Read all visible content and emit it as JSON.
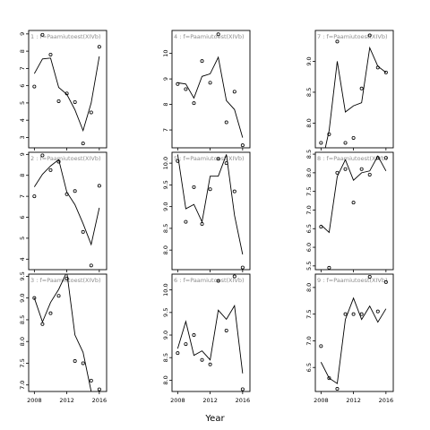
{
  "chart_data": {
    "type": "scatter",
    "xlabel": "Year",
    "x_ticks": [
      2008,
      2012,
      2016
    ],
    "panels": [
      {
        "strip": "1 : f=Paamiutoest(XIVb)",
        "x": [
          2008,
          2009,
          2010,
          2011,
          2012,
          2013,
          2014,
          2015,
          2016
        ],
        "points": [
          5.95,
          8.95,
          7.8,
          5.1,
          5.55,
          5.05,
          2.65,
          4.45,
          8.25
        ],
        "fit": [
          6.7,
          7.55,
          7.6,
          5.9,
          5.5,
          4.6,
          3.4,
          5.0,
          7.7
        ],
        "yticks": [
          3,
          4,
          5,
          6,
          7,
          8,
          9
        ],
        "ylim": [
          2.4,
          9.2
        ]
      },
      {
        "strip": "4 : f=Paamiutoest(XIVb)",
        "x": [
          2008,
          2009,
          2010,
          2011,
          2012,
          2013,
          2014,
          2015,
          2016
        ],
        "points": [
          8.8,
          8.6,
          8.05,
          9.7,
          8.85,
          10.75,
          7.3,
          8.5,
          6.4
        ],
        "fit": [
          8.85,
          8.8,
          8.25,
          9.1,
          9.2,
          9.85,
          8.15,
          7.8,
          6.7
        ],
        "yticks": [
          7,
          8,
          9,
          10
        ],
        "ylim": [
          6.3,
          10.9
        ]
      },
      {
        "strip": "7 : f=Paamiutoest(XIVb)",
        "x": [
          2008,
          2009,
          2010,
          2011,
          2012,
          2013,
          2014,
          2015,
          2016
        ],
        "points": [
          7.68,
          7.82,
          9.32,
          7.68,
          7.76,
          8.56,
          9.42,
          8.9,
          8.82
        ],
        "fit": [
          7.28,
          7.88,
          9.0,
          8.18,
          8.28,
          8.33,
          9.22,
          8.92,
          8.82
        ],
        "yticks": [
          8.0,
          8.5,
          9.0
        ],
        "ylim": [
          7.6,
          9.5
        ]
      },
      {
        "strip": "2 : f=Paamiutoest(XIVb)",
        "x": [
          2008,
          2009,
          2010,
          2011,
          2012,
          2013,
          2014,
          2015,
          2016
        ],
        "points": [
          7.0,
          8.95,
          8.25,
          8.65,
          7.1,
          7.25,
          5.3,
          3.7,
          7.5
        ],
        "fit": [
          7.45,
          8.05,
          8.45,
          8.75,
          7.2,
          6.6,
          5.7,
          4.7,
          6.45
        ],
        "yticks": [
          4,
          5,
          6,
          7,
          8,
          9
        ],
        "ylim": [
          3.5,
          9.1
        ]
      },
      {
        "strip": "5 : f=Paamiutoest(XIVb)",
        "x": [
          2008,
          2009,
          2010,
          2011,
          2012,
          2013,
          2014,
          2015,
          2016
        ],
        "points": [
          10.05,
          8.65,
          9.45,
          8.6,
          9.4,
          10.1,
          10.0,
          9.35,
          7.6
        ],
        "fit": [
          10.2,
          8.95,
          9.05,
          8.65,
          9.7,
          9.7,
          10.2,
          8.8,
          7.9
        ],
        "yticks": [
          8.0,
          8.5,
          9.0,
          9.5,
          10.0
        ],
        "ylim": [
          7.55,
          10.25
        ]
      },
      {
        "strip": "8 : f=Paamiutoest(XIVb)",
        "x": [
          2008,
          2009,
          2010,
          2011,
          2012,
          2013,
          2014,
          2015,
          2016
        ],
        "points": [
          6.55,
          5.45,
          8.0,
          8.1,
          7.2,
          8.1,
          7.95,
          8.4,
          8.4
        ],
        "fit": [
          6.6,
          6.4,
          7.9,
          8.35,
          7.8,
          8.0,
          8.05,
          8.45,
          8.05
        ],
        "yticks": [
          5.5,
          6.0,
          6.5,
          7.0,
          7.5,
          8.0,
          8.5
        ],
        "ylim": [
          5.4,
          8.55
        ]
      },
      {
        "strip": "3 : f=Paamiutoest(XIVb)",
        "x": [
          2008,
          2009,
          2010,
          2011,
          2012,
          2013,
          2014,
          2015,
          2016
        ],
        "points": [
          9.0,
          8.4,
          8.65,
          9.05,
          9.45,
          7.55,
          7.5,
          7.1,
          6.9
        ],
        "fit": [
          9.0,
          8.45,
          8.9,
          9.2,
          9.6,
          8.15,
          7.75,
          6.85,
          6.6
        ],
        "yticks": [
          7.0,
          7.5,
          8.0,
          8.5,
          9.0,
          9.5
        ],
        "ylim": [
          6.85,
          9.55
        ]
      },
      {
        "strip": "6 : f=Paamiutoest(XIVb)",
        "x": [
          2008,
          2009,
          2010,
          2011,
          2012,
          2013,
          2014,
          2015,
          2016
        ],
        "points": [
          8.6,
          8.8,
          9.0,
          8.45,
          8.35,
          10.2,
          9.1,
          10.3,
          7.8
        ],
        "fit": [
          8.7,
          9.3,
          8.55,
          8.65,
          8.45,
          9.55,
          9.35,
          9.65,
          8.15
        ],
        "yticks": [
          8.0,
          8.5,
          9.0,
          9.5,
          10.0
        ],
        "ylim": [
          7.75,
          10.35
        ]
      },
      {
        "strip": "9 : f=Paamiutoest(XIVb)",
        "x": [
          2008,
          2009,
          2010,
          2011,
          2012,
          2013,
          2014,
          2015,
          2016
        ],
        "points": [
          6.9,
          6.3,
          6.1,
          7.5,
          7.5,
          7.5,
          8.2,
          7.55,
          8.1
        ],
        "fit": [
          6.6,
          6.3,
          6.2,
          7.4,
          7.8,
          7.4,
          7.65,
          7.35,
          7.6
        ],
        "yticks": [
          6.5,
          7.0,
          7.5,
          8.0
        ],
        "ylim": [
          6.05,
          8.25
        ]
      }
    ]
  }
}
